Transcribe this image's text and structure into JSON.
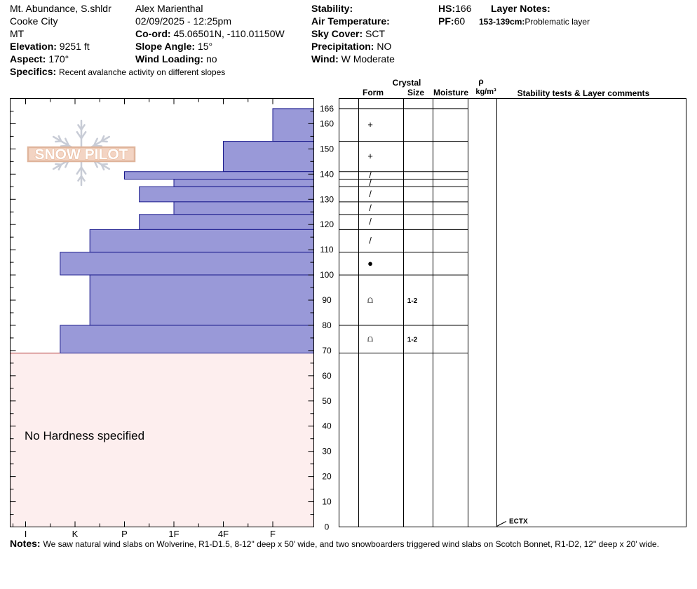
{
  "header": {
    "location": "Mt. Abundance, S.shldr",
    "city": "Cooke City",
    "state": "MT",
    "elevation_label": "Elevation:",
    "elevation_value": "9251 ft",
    "aspect_label": "Aspect:",
    "aspect_value": "170°",
    "specifics_label": "Specifics:",
    "specifics_value": "Recent avalanche activity on different slopes",
    "observer": "Alex Marienthal",
    "datetime": "02/09/2025 - 12:25pm",
    "coord_label": "Co-ord:",
    "coord_value": "45.06501N, -110.01150W",
    "slope_label": "Slope Angle:",
    "slope_value": "15°",
    "wind_loading_label": "Wind Loading:",
    "wind_loading_value": "no",
    "stability_label": "Stability:",
    "stability_value": "",
    "air_temp_label": "Air Temperature:",
    "air_temp_value": "",
    "sky_label": "Sky Cover:",
    "sky_value": "SCT",
    "precip_label": "Precipitation:",
    "precip_value": "NO",
    "wind_label": "Wind:",
    "wind_value": "W Moderate",
    "hs_label": "HS:",
    "hs_value": "166",
    "pf_label": "PF:",
    "pf_value": "60",
    "layer_notes_label": "Layer Notes:",
    "layer_note_depth": "153-139cm:",
    "layer_note_text": "Problematic layer"
  },
  "columns": {
    "crystal": "Crystal",
    "form": "Form",
    "size": "Size",
    "moisture": "Moisture",
    "rho": "ρ",
    "density_unit": "kg/m³",
    "stability": "Stability tests & Layer comments"
  },
  "logo": {
    "text": "SNOW PILOT"
  },
  "no_hardness": "No Hardness specified",
  "notes_label": "Notes:",
  "notes_value": "We saw natural wind slabs on Wolverine, R1-D1.5, 8-12\" deep x 50' wide, and two snowboarders triggered wind slabs on Scotch Bonnet, R1-D2, 12\" deep x 20' wide.",
  "colors": {
    "layer_fill": "#9999d8",
    "layer_stroke": "#1a1a8c",
    "no_hardness_fill": "#fdeeee",
    "no_hardness_stroke": "#b03030"
  },
  "chart_data": {
    "type": "bar",
    "orientation": "horizontal",
    "x_categories": [
      "I",
      "K",
      "P",
      "1F",
      "4F",
      "F"
    ],
    "y_ticks": [
      0,
      10,
      20,
      30,
      40,
      50,
      60,
      70,
      80,
      90,
      100,
      110,
      120,
      130,
      140,
      150,
      160,
      166
    ],
    "ylim": [
      0,
      170
    ],
    "no_hardness_range": [
      0,
      69
    ],
    "layers": [
      {
        "top": 166,
        "bottom": 153,
        "hardness": 6.0,
        "form": "+",
        "size": ""
      },
      {
        "top": 153,
        "bottom": 141,
        "hardness": 5.0,
        "form": "+",
        "size": ""
      },
      {
        "top": 141,
        "bottom": 138,
        "hardness": 3.0,
        "form": "/",
        "size": ""
      },
      {
        "top": 138,
        "bottom": 135,
        "hardness": 4.0,
        "form": "/",
        "size": ""
      },
      {
        "top": 135,
        "bottom": 129,
        "hardness": 3.3,
        "form": "/",
        "size": ""
      },
      {
        "top": 129,
        "bottom": 124,
        "hardness": 4.0,
        "form": "/",
        "size": ""
      },
      {
        "top": 124,
        "bottom": 118,
        "hardness": 3.3,
        "form": "/",
        "size": ""
      },
      {
        "top": 118,
        "bottom": 109,
        "hardness": 2.3,
        "form": "/",
        "size": ""
      },
      {
        "top": 109,
        "bottom": 100,
        "hardness": 1.7,
        "form": "●",
        "size": ""
      },
      {
        "top": 100,
        "bottom": 80,
        "hardness": 2.3,
        "form": "⩍",
        "size": "1-2"
      },
      {
        "top": 80,
        "bottom": 69,
        "hardness": 1.7,
        "form": "⩍",
        "size": "1-2"
      }
    ],
    "tests": [
      {
        "depth": 0,
        "label": "ECTX"
      }
    ]
  }
}
